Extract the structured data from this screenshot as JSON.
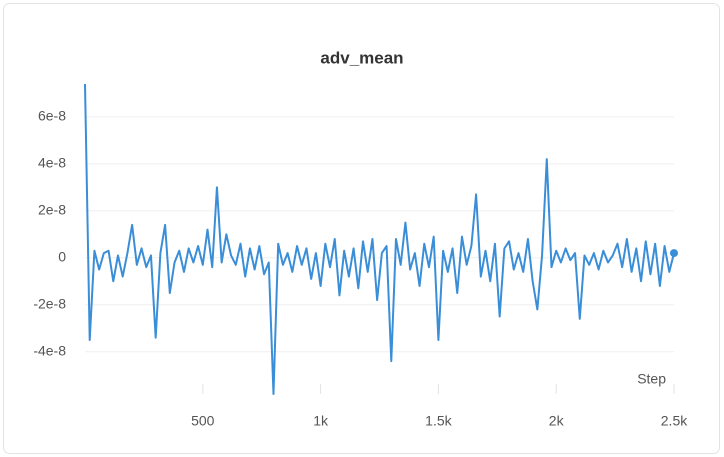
{
  "chart_data": {
    "type": "line",
    "title": "adv_mean",
    "x_label": "Step",
    "x": [
      0,
      20,
      40,
      60,
      80,
      100,
      120,
      140,
      160,
      180,
      200,
      220,
      240,
      260,
      280,
      300,
      320,
      340,
      360,
      380,
      400,
      420,
      440,
      460,
      480,
      500,
      520,
      540,
      560,
      580,
      600,
      620,
      640,
      660,
      680,
      700,
      720,
      740,
      760,
      780,
      800,
      820,
      840,
      860,
      880,
      900,
      920,
      940,
      960,
      980,
      1000,
      1020,
      1040,
      1060,
      1080,
      1100,
      1120,
      1140,
      1160,
      1180,
      1200,
      1220,
      1240,
      1260,
      1280,
      1300,
      1320,
      1340,
      1360,
      1380,
      1400,
      1420,
      1440,
      1460,
      1480,
      1500,
      1520,
      1540,
      1560,
      1580,
      1600,
      1620,
      1640,
      1660,
      1680,
      1700,
      1720,
      1740,
      1760,
      1780,
      1800,
      1820,
      1840,
      1860,
      1880,
      1900,
      1920,
      1940,
      1960,
      1980,
      2000,
      2020,
      2040,
      2060,
      2080,
      2100,
      2120,
      2140,
      2160,
      2180,
      2200,
      2220,
      2240,
      2260,
      2280,
      2300,
      2320,
      2340,
      2360,
      2380,
      2400,
      2420,
      2440,
      2460,
      2480,
      2500
    ],
    "series": [
      {
        "name": "adv_mean",
        "color": "#3a8ed8",
        "values": [
          7.4e-08,
          -3.5e-08,
          3e-09,
          -5e-09,
          2e-09,
          3e-09,
          -1e-08,
          1e-09,
          -8e-09,
          2e-09,
          1.4e-08,
          -3e-09,
          4e-09,
          -4e-09,
          1e-09,
          -3.4e-08,
          2e-09,
          1.4e-08,
          -1.5e-08,
          -2e-09,
          3e-09,
          -6e-09,
          4e-09,
          -2e-09,
          5e-09,
          -3e-09,
          1.2e-08,
          -4e-09,
          3e-08,
          -2e-09,
          1e-08,
          1e-09,
          -3e-09,
          6e-09,
          -8e-09,
          4e-09,
          -5e-09,
          5e-09,
          -7e-09,
          -2e-09,
          -5.8e-08,
          6e-09,
          -3e-09,
          2e-09,
          -6e-09,
          5e-09,
          -3e-09,
          4e-09,
          -9e-09,
          2e-09,
          -1.2e-08,
          6e-09,
          -4e-09,
          8e-09,
          -1.6e-08,
          3e-09,
          -8e-09,
          4e-09,
          -1.3e-08,
          7e-09,
          -6e-09,
          8e-09,
          -1.8e-08,
          2e-09,
          5e-09,
          -4.4e-08,
          8e-09,
          -3e-09,
          1.5e-08,
          -5e-09,
          2e-09,
          -1.2e-08,
          6e-09,
          -4e-09,
          9e-09,
          -3.5e-08,
          3e-09,
          -6e-09,
          4e-09,
          -1.5e-08,
          9e-09,
          -3e-09,
          5e-09,
          2.7e-08,
          -8e-09,
          3e-09,
          -1e-08,
          6e-09,
          -2.5e-08,
          4e-09,
          7e-09,
          -5e-09,
          2e-09,
          -6e-09,
          8e-09,
          -1e-08,
          -2.2e-08,
          1e-09,
          4.2e-08,
          -4e-09,
          3e-09,
          -2e-09,
          4e-09,
          -1e-09,
          2e-09,
          -2.6e-08,
          1e-09,
          -3e-09,
          2e-09,
          -5e-09,
          3e-09,
          -2e-09,
          1e-09,
          6e-09,
          -4e-09,
          8e-09,
          -6e-09,
          4e-09,
          -1e-08,
          7e-09,
          -7e-09,
          6e-09,
          -1.2e-08,
          5e-09,
          -6e-09,
          2e-09
        ]
      }
    ],
    "xlim": [
      0,
      2500
    ],
    "xticks": [
      500,
      {
        "value": 1000,
        "label": "1k"
      },
      {
        "value": 1500,
        "label": "1.5k"
      },
      {
        "value": 2000,
        "label": "2k"
      },
      {
        "value": 2500,
        "label": "2.5k"
      }
    ],
    "ylim": [
      -5.8e-08,
      7.4e-08
    ],
    "yticks": [
      {
        "value": -4e-08,
        "label": "-4e-8"
      },
      {
        "value": -2e-08,
        "label": "-2e-8"
      },
      0,
      {
        "value": 2e-08,
        "label": "2e-8"
      },
      {
        "value": 4e-08,
        "label": "4e-8"
      },
      {
        "value": 6e-08,
        "label": "6e-8"
      }
    ],
    "grid": true
  }
}
